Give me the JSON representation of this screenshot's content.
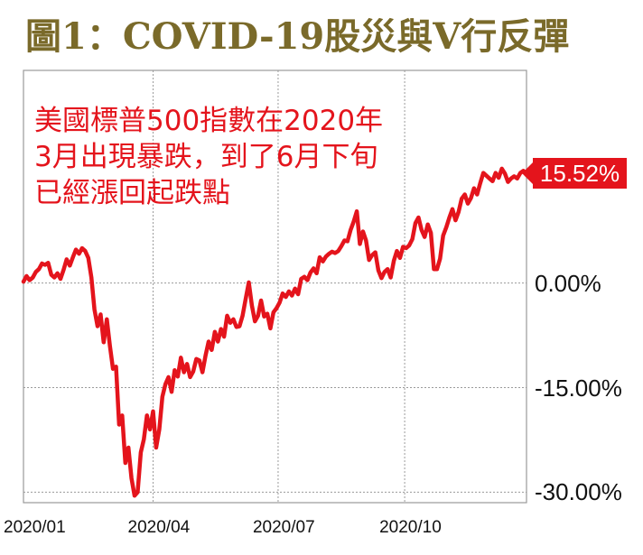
{
  "title": "圖1：COVID-19股災與V行反彈",
  "annotation": "美國標普500指數在2020年\n3月出現暴跌，到了6月下旬\n已經漲回起跌點",
  "chart_data": {
    "type": "line",
    "yticks": [
      "0.00%",
      "-15.00%",
      "-30.00%"
    ],
    "ytick_values": [
      0,
      -15,
      -30
    ],
    "xticks": [
      "2020/01",
      "2020/04",
      "2020/07",
      "2020/10"
    ],
    "ylim": [
      -31.5,
      30.5
    ],
    "end_label": "15.52%",
    "grid": true,
    "line_color": "#e4141c",
    "series": [
      {
        "values": [
          0.2,
          1.0,
          0.4,
          0.8,
          1.6,
          2.0,
          2.8,
          2.6,
          2.9,
          1.2,
          0.8,
          1.4,
          0.6,
          1.9,
          3.4,
          2.5,
          3.7,
          4.8,
          4.2,
          5.0,
          4.6,
          3.6,
          0.8,
          -3.8,
          -6.2,
          -4.5,
          -8.5,
          -5.2,
          -9.0,
          -12.3,
          -12.0,
          -20.3,
          -19.0,
          -25.8,
          -23.6,
          -28.0,
          -30.5,
          -30.0,
          -24.3,
          -22.4,
          -19.0,
          -21.0,
          -18.4,
          -23.6,
          -21.0,
          -16.3,
          -14.5,
          -13.5,
          -15.6,
          -12.5,
          -13.4,
          -10.7,
          -12.8,
          -11.6,
          -13.5,
          -12.7,
          -10.9,
          -11.1,
          -12.8,
          -10.4,
          -8.4,
          -9.6,
          -7.0,
          -8.4,
          -6.6,
          -7.7,
          -4.7,
          -5.7,
          -5.2,
          -6.3,
          -6.2,
          -4.7,
          -2.3,
          0.1,
          -3.2,
          -5.5,
          -4.7,
          -2.5,
          -4.8,
          -4.4,
          -6.5,
          -4.2,
          -3.6,
          -2.8,
          -1.5,
          -2.0,
          -1.2,
          -1.8,
          -0.8,
          -1.6,
          0.6,
          0.9,
          0.4,
          1.5,
          2.1,
          1.4,
          3.7,
          3.1,
          3.8,
          4.2,
          4.5,
          4.3,
          4.6,
          5.3,
          6.1,
          6.0,
          7.6,
          8.8,
          10.3,
          5.6,
          7.4,
          6.1,
          3.3,
          4.0,
          4.4,
          1.8,
          0.7,
          1.6,
          2.0,
          0.8,
          3.2,
          4.6,
          3.6,
          5.2,
          5.0,
          5.4,
          6.3,
          8.6,
          9.4,
          7.6,
          6.6,
          8.4,
          7.2,
          2.0,
          2.0,
          3.5,
          6.8,
          8.0,
          9.4,
          10.6,
          9.0,
          10.2,
          12.1,
          12.7,
          11.4,
          12.2,
          13.6,
          12.7,
          14.3,
          15.8,
          15.4,
          15.0,
          14.6,
          15.8,
          15.1,
          16.4,
          15.7,
          14.5,
          15.0,
          15.3,
          15.0,
          15.8,
          16.1,
          15.52
        ]
      }
    ]
  }
}
